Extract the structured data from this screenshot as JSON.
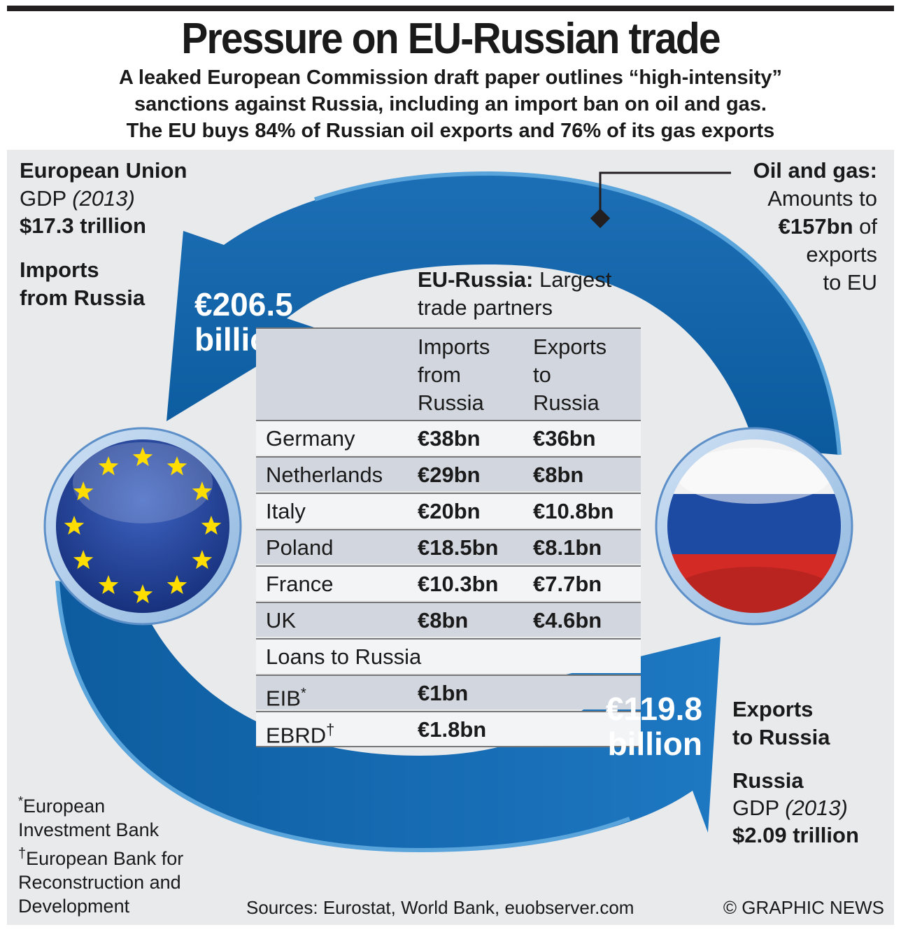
{
  "header": {
    "title": "Pressure on EU-Russian trade",
    "subtitle_lines": [
      "A leaked European Commission draft paper outlines “high-intensity”",
      "sanctions against Russia, including an import ban on oil and gas.",
      "The EU buys 84% of Russian oil exports and 76% of its gas exports"
    ]
  },
  "eu": {
    "name": "European Union",
    "gdp_label": "GDP",
    "gdp_year": "(2013)",
    "gdp_value": "$17.3 trillion",
    "imports_label_1": "Imports",
    "imports_label_2": "from Russia",
    "imports_value_1": "€206.5",
    "imports_value_2": "billion"
  },
  "oil_gas": {
    "title": "Oil and gas:",
    "line1": "Amounts to",
    "value": "€157bn",
    "line2_suffix": "of",
    "line3": "exports",
    "line4": "to EU"
  },
  "russia": {
    "exports_label_1": "Exports",
    "exports_label_2": "to Russia",
    "exports_value_1": "€119.8",
    "exports_value_2": "billion",
    "name": "Russia",
    "gdp_label": "GDP",
    "gdp_year": "(2013)",
    "gdp_value": "$2.09 trillion"
  },
  "table": {
    "heading_bold": "EU-Russia:",
    "heading_rest": "Largest",
    "heading_line2": "trade partners",
    "col_imports": [
      "Imports",
      "from",
      "Russia"
    ],
    "col_exports": [
      "Exports",
      "to",
      "Russia"
    ],
    "rows": [
      {
        "country": "Germany",
        "imports": "€38bn",
        "exports": "€36bn"
      },
      {
        "country": "Netherlands",
        "imports": "€29bn",
        "exports": "€8bn"
      },
      {
        "country": "Italy",
        "imports": "€20bn",
        "exports": "€10.8bn"
      },
      {
        "country": "Poland",
        "imports": "€18.5bn",
        "exports": "€8.1bn"
      },
      {
        "country": "France",
        "imports": "€10.3bn",
        "exports": "€7.7bn"
      },
      {
        "country": "UK",
        "imports": "€8bn",
        "exports": "€4.6bn"
      }
    ],
    "loans_label": "Loans to Russia",
    "loans": [
      {
        "lender": "EIB",
        "mark": "*",
        "value": "€1bn"
      },
      {
        "lender": "EBRD",
        "mark": "†",
        "value": "€1.8bn"
      }
    ]
  },
  "footnotes": {
    "eib_mark": "*",
    "eib_1": "European",
    "eib_2": "Investment Bank",
    "ebrd_mark": "†",
    "ebrd_1": "European Bank for",
    "ebrd_2": "Reconstruction and",
    "ebrd_3": "Development"
  },
  "sources": "Sources: Eurostat, World Bank, euobserver.com",
  "credit": "© GRAPHIC NEWS",
  "colors": {
    "arrow_blue": "#1c6fb3",
    "arrow_light": "#3d95d3",
    "panel_bg": "#e9eaec",
    "eu_blue": "#1f3e98",
    "eu_star": "#ffdd00",
    "ru_white": "#ffffff",
    "ru_blue": "#1d4aa3",
    "ru_red": "#d42a25"
  }
}
